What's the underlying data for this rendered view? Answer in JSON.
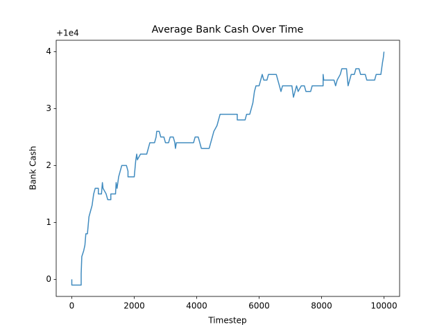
{
  "chart_data": {
    "type": "line",
    "title": "Average Bank Cash Over Time",
    "x_label": "Timestep",
    "y_label": "Bank Cash",
    "y_offset_label": "+1e4",
    "xlim": [
      -500,
      10500
    ],
    "xticks": [
      0,
      2000,
      4000,
      6000,
      8000,
      10000
    ],
    "ylim": [
      -0.3,
      4.2
    ],
    "yticks": [
      0,
      1,
      2,
      3,
      4
    ],
    "series": [
      {
        "name": "Bank Cash",
        "color": "#1f77b4",
        "x": [
          0,
          0,
          300,
          300,
          320,
          380,
          420,
          450,
          500,
          550,
          600,
          650,
          700,
          750,
          850,
          850,
          950,
          980,
          1000,
          1100,
          1150,
          1250,
          1250,
          1400,
          1420,
          1450,
          1500,
          1550,
          1600,
          1750,
          1800,
          1800,
          2000,
          2050,
          2080,
          2100,
          2200,
          2400,
          2450,
          2500,
          2650,
          2700,
          2720,
          2800,
          2850,
          2950,
          3000,
          3100,
          3150,
          3250,
          3300,
          3320,
          3350,
          3900,
          3950,
          4050,
          4100,
          4150,
          4400,
          4450,
          4500,
          4550,
          4650,
          4700,
          4750,
          5300,
          5300,
          5550,
          5600,
          5700,
          5750,
          5800,
          5850,
          5900,
          6000,
          6100,
          6150,
          6250,
          6300,
          6550,
          6600,
          6650,
          6700,
          6750,
          7050,
          7100,
          7150,
          7200,
          7250,
          7350,
          7450,
          7500,
          7650,
          7700,
          8050,
          8050,
          8070,
          8400,
          8450,
          8500,
          8600,
          8650,
          8800,
          8850,
          8900,
          8950,
          9050,
          9100,
          9200,
          9250,
          9400,
          9450,
          9700,
          9750,
          9900,
          9950,
          9980,
          10000
        ],
        "values": [
          0,
          -0.1,
          -0.1,
          0.1,
          0.4,
          0.5,
          0.6,
          0.8,
          0.8,
          1.1,
          1.2,
          1.3,
          1.5,
          1.6,
          1.6,
          1.5,
          1.5,
          1.7,
          1.6,
          1.5,
          1.4,
          1.4,
          1.5,
          1.5,
          1.7,
          1.6,
          1.8,
          1.9,
          2.0,
          2.0,
          1.9,
          1.8,
          1.8,
          2.1,
          2.2,
          2.1,
          2.2,
          2.2,
          2.3,
          2.4,
          2.4,
          2.5,
          2.6,
          2.6,
          2.5,
          2.5,
          2.4,
          2.4,
          2.5,
          2.5,
          2.4,
          2.3,
          2.4,
          2.4,
          2.5,
          2.5,
          2.4,
          2.3,
          2.3,
          2.4,
          2.5,
          2.6,
          2.7,
          2.8,
          2.9,
          2.9,
          2.8,
          2.8,
          2.9,
          2.9,
          3.0,
          3.1,
          3.3,
          3.4,
          3.4,
          3.6,
          3.5,
          3.5,
          3.6,
          3.6,
          3.5,
          3.4,
          3.3,
          3.4,
          3.4,
          3.2,
          3.3,
          3.4,
          3.3,
          3.4,
          3.4,
          3.3,
          3.3,
          3.4,
          3.4,
          3.6,
          3.5,
          3.5,
          3.4,
          3.5,
          3.6,
          3.7,
          3.7,
          3.4,
          3.5,
          3.6,
          3.6,
          3.7,
          3.7,
          3.6,
          3.6,
          3.5,
          3.5,
          3.6,
          3.6,
          3.8,
          3.9,
          4.0
        ]
      }
    ]
  }
}
